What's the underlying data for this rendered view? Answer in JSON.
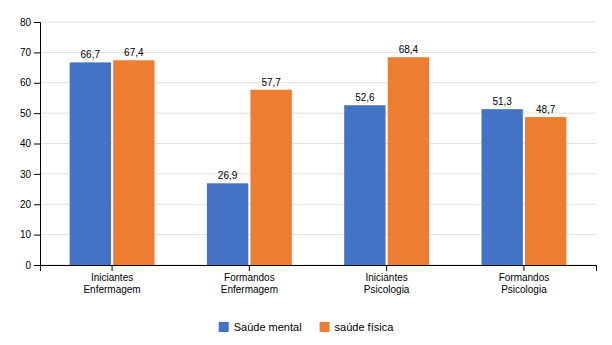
{
  "chart_data": {
    "type": "bar",
    "categories": [
      "Iniciantes\nEnfermagem",
      "Formandos\nEnfermagem",
      "Iniciantes\nPsicologia",
      "Formandos\nPsicologia"
    ],
    "series": [
      {
        "name": "Saúde mental",
        "color": "#4472c4",
        "values": [
          66.7,
          26.9,
          52.6,
          51.3
        ],
        "value_labels": [
          "66,7",
          "26,9",
          "52,6",
          "51,3"
        ]
      },
      {
        "name": "saúde física",
        "color": "#ed7d31",
        "values": [
          67.4,
          57.7,
          68.4,
          48.7
        ],
        "value_labels": [
          "67,4",
          "57,7",
          "68,4",
          "48,7"
        ]
      }
    ],
    "ylim": [
      0,
      80
    ],
    "yticks": [
      0,
      10,
      20,
      30,
      40,
      50,
      60,
      70,
      80
    ],
    "grid": true,
    "legend": "bottom",
    "data_labels": true
  }
}
